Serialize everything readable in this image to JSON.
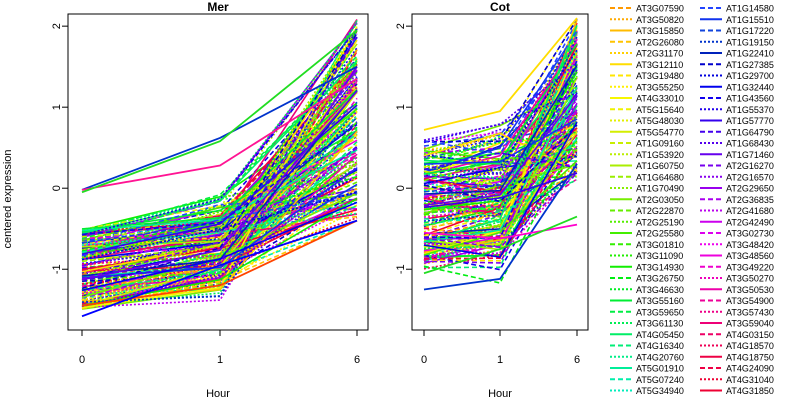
{
  "chart_data": {
    "type": "line",
    "ylabel": "centered expression",
    "ylim": [
      -1.75,
      2.15
    ],
    "y_ticks": [
      -1,
      0,
      1,
      2
    ],
    "x_ticks": [
      "0",
      "1",
      "6"
    ],
    "x": [
      0,
      1,
      6
    ],
    "panels": [
      {
        "title": "Mer",
        "xlabel": "Hour",
        "highlight": [
          {
            "color": "#0033cc",
            "values": [
              -0.02,
              0.62,
              1.5
            ]
          },
          {
            "color": "#ff1493",
            "values": [
              -0.02,
              0.28,
              1.35
            ]
          },
          {
            "color": "#22dd22",
            "values": [
              -0.05,
              0.58,
              1.95
            ]
          },
          {
            "color": "#ff4400",
            "values": [
              -1.45,
              -1.2,
              -0.4
            ]
          },
          {
            "color": "#0000ff",
            "values": [
              -1.58,
              -0.95,
              -0.4
            ]
          }
        ]
      },
      {
        "title": "Cot",
        "xlabel": "Hour",
        "highlight": [
          {
            "color": "#0033cc",
            "values": [
              -1.25,
              -1.12,
              0.3
            ]
          },
          {
            "color": "#ff00cc",
            "values": [
              -0.55,
              -0.62,
              -0.45
            ]
          },
          {
            "color": "#22dd22",
            "values": [
              -1.05,
              -0.75,
              -0.35
            ]
          },
          {
            "color": "#ffdd00",
            "values": [
              0.72,
              0.95,
              2.1
            ]
          }
        ]
      }
    ],
    "legend": {
      "position": "right",
      "entries": [
        {
          "label": "AT3G07590",
          "color": "#ff9900",
          "dash": "dashed"
        },
        {
          "label": "AT3G50820",
          "color": "#ffaa00",
          "dash": "dotted"
        },
        {
          "label": "AT3G15850",
          "color": "#ffbb00",
          "dash": "solid"
        },
        {
          "label": "AT2G26080",
          "color": "#ffc400",
          "dash": "dashed"
        },
        {
          "label": "AT2G31170",
          "color": "#ffd000",
          "dash": "dotted"
        },
        {
          "label": "AT3G12110",
          "color": "#ffdd00",
          "dash": "solid"
        },
        {
          "label": "AT3G19480",
          "color": "#ffe600",
          "dash": "dashed"
        },
        {
          "label": "AT3G55250",
          "color": "#fff000",
          "dash": "dotted"
        },
        {
          "label": "AT4G33010",
          "color": "#f7f700",
          "dash": "solid"
        },
        {
          "label": "AT5G15640",
          "color": "#eef200",
          "dash": "dashed"
        },
        {
          "label": "AT5G48030",
          "color": "#e2f000",
          "dash": "dotted"
        },
        {
          "label": "AT5G54770",
          "color": "#d4ee00",
          "dash": "solid"
        },
        {
          "label": "AT1G09160",
          "color": "#c8ee00",
          "dash": "dashed"
        },
        {
          "label": "AT1G53920",
          "color": "#bbee00",
          "dash": "dotted"
        },
        {
          "label": "AT1G60750",
          "color": "#aaee00",
          "dash": "solid"
        },
        {
          "label": "AT1G64680",
          "color": "#99ee00",
          "dash": "dashed"
        },
        {
          "label": "AT1G70490",
          "color": "#88ee00",
          "dash": "dotted"
        },
        {
          "label": "AT2G03050",
          "color": "#77ee00",
          "dash": "solid"
        },
        {
          "label": "AT2G22870",
          "color": "#66ee00",
          "dash": "dashed"
        },
        {
          "label": "AT2G25190",
          "color": "#55ee00",
          "dash": "dotted"
        },
        {
          "label": "AT2G25580",
          "color": "#44ee00",
          "dash": "solid"
        },
        {
          "label": "AT3G01810",
          "color": "#33ee00",
          "dash": "dashed"
        },
        {
          "label": "AT3G11090",
          "color": "#22ee00",
          "dash": "dotted"
        },
        {
          "label": "AT3G14930",
          "color": "#11ee00",
          "dash": "solid"
        },
        {
          "label": "AT3G26750",
          "color": "#00ee11",
          "dash": "dashed"
        },
        {
          "label": "AT3G46630",
          "color": "#00ee22",
          "dash": "dotted"
        },
        {
          "label": "AT3G55160",
          "color": "#00ee33",
          "dash": "solid"
        },
        {
          "label": "AT3G59650",
          "color": "#00ee44",
          "dash": "dashed"
        },
        {
          "label": "AT3G61130",
          "color": "#00ee55",
          "dash": "dotted"
        },
        {
          "label": "AT4G05450",
          "color": "#00ee66",
          "dash": "solid"
        },
        {
          "label": "AT4G16340",
          "color": "#00ee77",
          "dash": "dashed"
        },
        {
          "label": "AT4G20760",
          "color": "#00ee88",
          "dash": "dotted"
        },
        {
          "label": "AT5G01910",
          "color": "#00ee99",
          "dash": "solid"
        },
        {
          "label": "AT5G07240",
          "color": "#00eeaa",
          "dash": "dashed"
        },
        {
          "label": "AT5G34940",
          "color": "#00eebb",
          "dash": "dotted"
        },
        {
          "label": "AT1G14580",
          "color": "#2244ff",
          "dash": "dashed"
        },
        {
          "label": "AT1G15510",
          "color": "#1133ee",
          "dash": "solid"
        },
        {
          "label": "AT1G17220",
          "color": "#1144dd",
          "dash": "dashed"
        },
        {
          "label": "AT1G19150",
          "color": "#0033cc",
          "dash": "dotted"
        },
        {
          "label": "AT1G22410",
          "color": "#0022bb",
          "dash": "solid"
        },
        {
          "label": "AT1G27385",
          "color": "#0000cc",
          "dash": "dashed"
        },
        {
          "label": "AT1G29700",
          "color": "#0000dd",
          "dash": "dotted"
        },
        {
          "label": "AT1G32440",
          "color": "#0000ee",
          "dash": "solid"
        },
        {
          "label": "AT1G43560",
          "color": "#1100ee",
          "dash": "dashed"
        },
        {
          "label": "AT1G55370",
          "color": "#2200ee",
          "dash": "dotted"
        },
        {
          "label": "AT1G57770",
          "color": "#3300ee",
          "dash": "solid"
        },
        {
          "label": "AT1G64790",
          "color": "#4400ee",
          "dash": "dashed"
        },
        {
          "label": "AT1G68430",
          "color": "#5500ee",
          "dash": "dotted"
        },
        {
          "label": "AT1G71460",
          "color": "#6600ee",
          "dash": "solid"
        },
        {
          "label": "AT2G16270",
          "color": "#7700ee",
          "dash": "dashed"
        },
        {
          "label": "AT2G16570",
          "color": "#8800ee",
          "dash": "dotted"
        },
        {
          "label": "AT2G29650",
          "color": "#9900ee",
          "dash": "solid"
        },
        {
          "label": "AT2G36835",
          "color": "#aa00ee",
          "dash": "dashed"
        },
        {
          "label": "AT2G41680",
          "color": "#bb00ee",
          "dash": "dotted"
        },
        {
          "label": "AT2G42490",
          "color": "#cc00ee",
          "dash": "solid"
        },
        {
          "label": "AT3G02730",
          "color": "#dd00ee",
          "dash": "dashed"
        },
        {
          "label": "AT3G48420",
          "color": "#ee00ee",
          "dash": "dotted"
        },
        {
          "label": "AT3G48560",
          "color": "#ee00dd",
          "dash": "solid"
        },
        {
          "label": "AT3G49220",
          "color": "#ee00cc",
          "dash": "dashed"
        },
        {
          "label": "AT3G50270",
          "color": "#ee00bb",
          "dash": "dotted"
        },
        {
          "label": "AT3G50530",
          "color": "#ee00aa",
          "dash": "solid"
        },
        {
          "label": "AT3G54900",
          "color": "#ee0099",
          "dash": "dashed"
        },
        {
          "label": "AT3G57430",
          "color": "#ee0088",
          "dash": "dotted"
        },
        {
          "label": "AT3G59040",
          "color": "#ee0077",
          "dash": "solid"
        },
        {
          "label": "AT4G03150",
          "color": "#ee0066",
          "dash": "dashed"
        },
        {
          "label": "AT4G18570",
          "color": "#ee0055",
          "dash": "dotted"
        },
        {
          "label": "AT4G18750",
          "color": "#ee0044",
          "dash": "solid"
        },
        {
          "label": "AT4G24090",
          "color": "#ee0044",
          "dash": "dashed"
        },
        {
          "label": "AT4G31040",
          "color": "#ee0033",
          "dash": "dotted"
        },
        {
          "label": "AT4G31850",
          "color": "#ee0033",
          "dash": "solid"
        }
      ]
    }
  }
}
